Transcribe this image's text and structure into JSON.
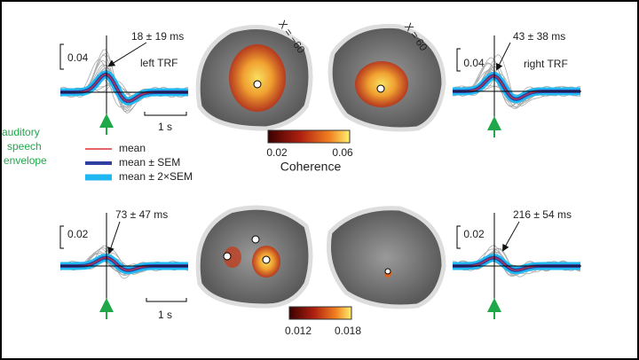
{
  "top_row": {
    "left_trf": {
      "latency": "18 ± 19 ms",
      "scale": "0.04",
      "label": "left TRF",
      "time_scale": "1 s"
    },
    "stimulus_label": [
      "auditory",
      "speech",
      "envelope"
    ],
    "legend": [
      "mean",
      "mean ± SEM",
      "mean ± 2×SEM"
    ],
    "brains": [
      "X = −60",
      "X = 60"
    ],
    "colorbar": {
      "min": "0.02",
      "max": "0.06",
      "label": "Coherence"
    },
    "right_trf": {
      "latency": "43 ± 38 ms",
      "scale": "0.04",
      "label": "right TRF"
    }
  },
  "bottom_row": {
    "left_trf": {
      "latency": "73 ± 47 ms",
      "scale": "0.02",
      "time_scale": "1 s"
    },
    "colorbar": {
      "min": "0.012",
      "max": "0.018"
    },
    "right_trf": {
      "latency": "216 ± 54 ms",
      "scale": "0.02"
    }
  }
}
